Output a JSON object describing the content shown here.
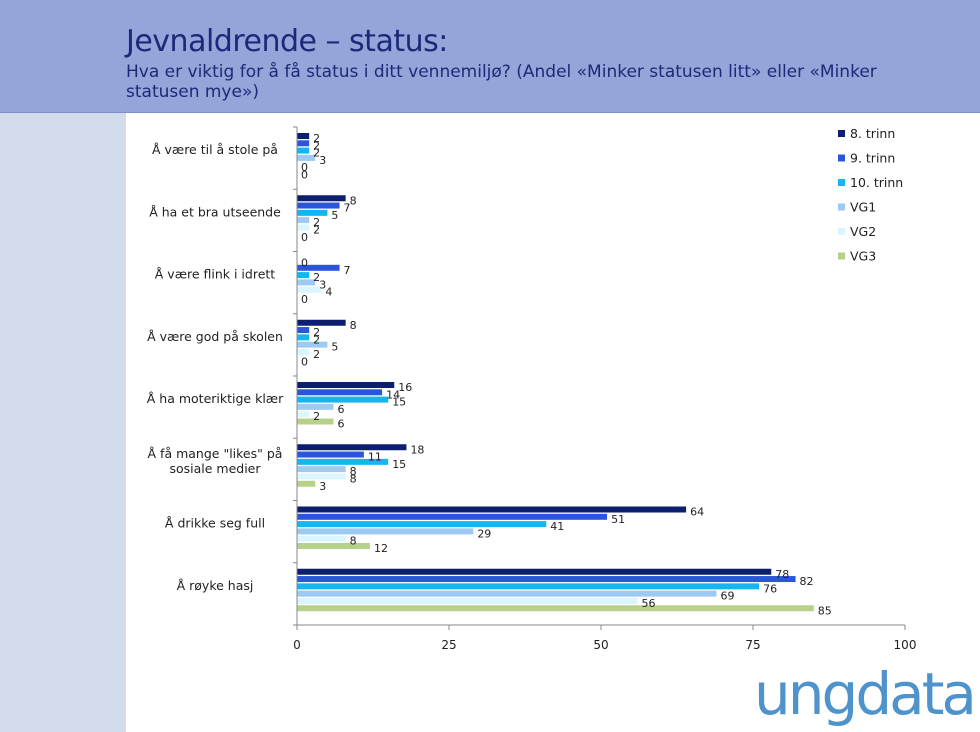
{
  "slide": {
    "title": "Jevnaldrende – status:",
    "subtitle": "Hva er viktig for å få status i ditt vennemiljø? (Andel «Minker statusen litt» eller «Minker statusen mye»)",
    "logo": "ungdata"
  },
  "chart_data": {
    "type": "bar",
    "orientation": "horizontal",
    "categories": [
      "Å være til å stole på",
      "Å ha et bra utseende",
      "Å være flink i idrett",
      "Å være god på skolen",
      "Å ha moteriktige klær",
      "Å få mange \"likes\" på sosiale medier",
      "Å drikke seg full",
      "Å røyke hasj"
    ],
    "series": [
      {
        "name": "8. trinn",
        "color": "#0b1f6e",
        "values": [
          2,
          8,
          0,
          8,
          16,
          18,
          64,
          78
        ]
      },
      {
        "name": "9. trinn",
        "color": "#2c56d9",
        "values": [
          2,
          7,
          7,
          2,
          14,
          11,
          51,
          82
        ]
      },
      {
        "name": "10. trinn",
        "color": "#14b6f0",
        "values": [
          2,
          5,
          2,
          2,
          15,
          15,
          41,
          76
        ]
      },
      {
        "name": "VG1",
        "color": "#9ccaf2",
        "values": [
          3,
          2,
          3,
          5,
          6,
          8,
          29,
          69
        ]
      },
      {
        "name": "VG2",
        "color": "#d9f5fd",
        "values": [
          0,
          2,
          4,
          2,
          2,
          8,
          8,
          56
        ]
      },
      {
        "name": "VG3",
        "color": "#b6d28a",
        "values": [
          0,
          0,
          0,
          0,
          6,
          3,
          12,
          85
        ]
      }
    ],
    "xlim": [
      0,
      100
    ],
    "xticks": [
      0,
      25,
      50,
      75,
      100
    ],
    "legend": "top-right",
    "grid": false
  }
}
